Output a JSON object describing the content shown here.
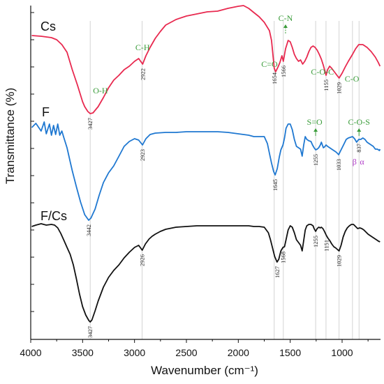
{
  "chart_data": {
    "type": "line",
    "xlabel": "Wavenumber (cm⁻¹)",
    "ylabel": "Transmittance (%)",
    "xlim": [
      4000,
      630
    ],
    "x_reversed": true,
    "x_ticks": [
      4000,
      3500,
      3000,
      2500,
      2000,
      1500,
      1000
    ],
    "grid": false,
    "colors": {
      "Cs": "#e8294f",
      "F": "#1f78d1",
      "F/Cs": "#111111",
      "groups": "#3a9c3a",
      "greek": "#b03cc8",
      "guide": "#c8c8c8"
    },
    "series": [
      {
        "name": "Cs",
        "points": [
          [
            3990,
            51
          ],
          [
            3900,
            52
          ],
          [
            3800,
            54
          ],
          [
            3750,
            57
          ],
          [
            3700,
            64
          ],
          [
            3650,
            75
          ],
          [
            3600,
            100
          ],
          [
            3550,
            122
          ],
          [
            3500,
            146
          ],
          [
            3480,
            153
          ],
          [
            3450,
            160
          ],
          [
            3427,
            163
          ],
          [
            3400,
            162
          ],
          [
            3350,
            153
          ],
          [
            3300,
            140
          ],
          [
            3250,
            126
          ],
          [
            3200,
            115
          ],
          [
            3150,
            108
          ],
          [
            3100,
            100
          ],
          [
            3050,
            95
          ],
          [
            3000,
            88
          ],
          [
            2960,
            84
          ],
          [
            2922,
            92
          ],
          [
            2890,
            80
          ],
          [
            2850,
            68
          ],
          [
            2800,
            55
          ],
          [
            2750,
            45
          ],
          [
            2700,
            36
          ],
          [
            2600,
            28
          ],
          [
            2500,
            23
          ],
          [
            2400,
            20
          ],
          [
            2300,
            17
          ],
          [
            2200,
            16
          ],
          [
            2100,
            12
          ],
          [
            2000,
            9
          ],
          [
            1950,
            8
          ],
          [
            1900,
            12
          ],
          [
            1850,
            18
          ],
          [
            1800,
            24
          ],
          [
            1750,
            32
          ],
          [
            1700,
            44
          ],
          [
            1680,
            58
          ],
          [
            1654,
            98
          ],
          [
            1640,
            103
          ],
          [
            1620,
            97
          ],
          [
            1600,
            90
          ],
          [
            1580,
            80
          ],
          [
            1566,
            88
          ],
          [
            1545,
            70
          ],
          [
            1520,
            58
          ],
          [
            1500,
            60
          ],
          [
            1480,
            68
          ],
          [
            1460,
            78
          ],
          [
            1440,
            84
          ],
          [
            1420,
            88
          ],
          [
            1400,
            86
          ],
          [
            1380,
            92
          ],
          [
            1360,
            88
          ],
          [
            1340,
            82
          ],
          [
            1320,
            74
          ],
          [
            1300,
            68
          ],
          [
            1280,
            66
          ],
          [
            1260,
            68
          ],
          [
            1240,
            72
          ],
          [
            1220,
            78
          ],
          [
            1200,
            85
          ],
          [
            1180,
            94
          ],
          [
            1155,
            108
          ],
          [
            1140,
            100
          ],
          [
            1120,
            95
          ],
          [
            1100,
            98
          ],
          [
            1070,
            104
          ],
          [
            1050,
            108
          ],
          [
            1029,
            112
          ],
          [
            1000,
            105
          ],
          [
            970,
            96
          ],
          [
            940,
            88
          ],
          [
            900,
            78
          ],
          [
            870,
            70
          ],
          [
            840,
            64
          ],
          [
            800,
            64
          ],
          [
            760,
            68
          ],
          [
            720,
            74
          ],
          [
            680,
            82
          ],
          [
            650,
            90
          ],
          [
            635,
            95
          ]
        ]
      },
      {
        "name": "F",
        "points": [
          [
            3990,
            183
          ],
          [
            3950,
            177
          ],
          [
            3900,
            188
          ],
          [
            3870,
            175
          ],
          [
            3850,
            192
          ],
          [
            3820,
            178
          ],
          [
            3800,
            194
          ],
          [
            3780,
            180
          ],
          [
            3760,
            193
          ],
          [
            3740,
            178
          ],
          [
            3720,
            194
          ],
          [
            3700,
            188
          ],
          [
            3680,
            198
          ],
          [
            3650,
            212
          ],
          [
            3620,
            232
          ],
          [
            3600,
            245
          ],
          [
            3560,
            268
          ],
          [
            3520,
            290
          ],
          [
            3480,
            308
          ],
          [
            3442,
            316
          ],
          [
            3420,
            313
          ],
          [
            3380,
            300
          ],
          [
            3340,
            280
          ],
          [
            3300,
            262
          ],
          [
            3250,
            248
          ],
          [
            3200,
            238
          ],
          [
            3150,
            224
          ],
          [
            3100,
            210
          ],
          [
            3050,
            203
          ],
          [
            3000,
            199
          ],
          [
            2960,
            201
          ],
          [
            2923,
            208
          ],
          [
            2890,
            199
          ],
          [
            2850,
            193
          ],
          [
            2800,
            191
          ],
          [
            2700,
            190
          ],
          [
            2600,
            190
          ],
          [
            2500,
            189
          ],
          [
            2400,
            189
          ],
          [
            2300,
            189
          ],
          [
            2200,
            189
          ],
          [
            2100,
            190
          ],
          [
            2000,
            192
          ],
          [
            1900,
            194
          ],
          [
            1850,
            196
          ],
          [
            1800,
            196
          ],
          [
            1750,
            196
          ],
          [
            1720,
            206
          ],
          [
            1700,
            220
          ],
          [
            1680,
            234
          ],
          [
            1660,
            246
          ],
          [
            1645,
            251
          ],
          [
            1625,
            242
          ],
          [
            1605,
            225
          ],
          [
            1590,
            215
          ],
          [
            1570,
            208
          ],
          [
            1555,
            198
          ],
          [
            1540,
            184
          ],
          [
            1520,
            178
          ],
          [
            1500,
            178
          ],
          [
            1480,
            186
          ],
          [
            1460,
            200
          ],
          [
            1440,
            210
          ],
          [
            1420,
            212
          ],
          [
            1400,
            214
          ],
          [
            1385,
            224
          ],
          [
            1370,
            208
          ],
          [
            1355,
            196
          ],
          [
            1340,
            200
          ],
          [
            1320,
            202
          ],
          [
            1300,
            203
          ],
          [
            1285,
            208
          ],
          [
            1270,
            212
          ],
          [
            1255,
            215
          ],
          [
            1240,
            214
          ],
          [
            1225,
            212
          ],
          [
            1210,
            208
          ],
          [
            1200,
            204
          ],
          [
            1190,
            208
          ],
          [
            1180,
            212
          ],
          [
            1170,
            211
          ],
          [
            1155,
            208
          ],
          [
            1140,
            210
          ],
          [
            1120,
            212
          ],
          [
            1100,
            214
          ],
          [
            1080,
            216
          ],
          [
            1060,
            218
          ],
          [
            1045,
            220
          ],
          [
            1033,
            222
          ],
          [
            1020,
            218
          ],
          [
            1000,
            212
          ],
          [
            980,
            206
          ],
          [
            960,
            200
          ],
          [
            940,
            198
          ],
          [
            920,
            197
          ],
          [
            900,
            196
          ],
          [
            880,
            199
          ],
          [
            860,
            204
          ],
          [
            840,
            200
          ],
          [
            820,
            200
          ],
          [
            800,
            198
          ],
          [
            780,
            200
          ],
          [
            760,
            204
          ],
          [
            740,
            206
          ],
          [
            720,
            208
          ],
          [
            700,
            210
          ],
          [
            680,
            214
          ],
          [
            660,
            214
          ],
          [
            640,
            216
          ],
          [
            635,
            214
          ]
        ]
      },
      {
        "name": "F/Cs",
        "points": [
          [
            3990,
            325
          ],
          [
            3950,
            323
          ],
          [
            3900,
            321
          ],
          [
            3850,
            323
          ],
          [
            3800,
            322
          ],
          [
            3770,
            323
          ],
          [
            3740,
            327
          ],
          [
            3710,
            335
          ],
          [
            3680,
            345
          ],
          [
            3650,
            355
          ],
          [
            3620,
            365
          ],
          [
            3590,
            380
          ],
          [
            3560,
            400
          ],
          [
            3530,
            422
          ],
          [
            3500,
            440
          ],
          [
            3470,
            452
          ],
          [
            3440,
            460
          ],
          [
            3427,
            462
          ],
          [
            3410,
            459
          ],
          [
            3380,
            446
          ],
          [
            3350,
            432
          ],
          [
            3300,
            412
          ],
          [
            3250,
            398
          ],
          [
            3200,
            388
          ],
          [
            3150,
            380
          ],
          [
            3100,
            370
          ],
          [
            3050,
            362
          ],
          [
            3000,
            355
          ],
          [
            2960,
            352
          ],
          [
            2926,
            359
          ],
          [
            2895,
            350
          ],
          [
            2860,
            343
          ],
          [
            2830,
            339
          ],
          [
            2800,
            336
          ],
          [
            2750,
            332
          ],
          [
            2700,
            329
          ],
          [
            2600,
            326
          ],
          [
            2500,
            325
          ],
          [
            2400,
            324
          ],
          [
            2300,
            324
          ],
          [
            2200,
            324
          ],
          [
            2100,
            324
          ],
          [
            2000,
            324
          ],
          [
            1900,
            324
          ],
          [
            1850,
            325
          ],
          [
            1800,
            325
          ],
          [
            1750,
            326
          ],
          [
            1710,
            334
          ],
          [
            1690,
            344
          ],
          [
            1670,
            356
          ],
          [
            1650,
            368
          ],
          [
            1627,
            376
          ],
          [
            1610,
            372
          ],
          [
            1590,
            360
          ],
          [
            1570,
            355
          ],
          [
            1555,
            354
          ],
          [
            1540,
            344
          ],
          [
            1520,
            330
          ],
          [
            1500,
            324
          ],
          [
            1480,
            326
          ],
          [
            1460,
            334
          ],
          [
            1440,
            344
          ],
          [
            1420,
            348
          ],
          [
            1400,
            352
          ],
          [
            1385,
            360
          ],
          [
            1370,
            345
          ],
          [
            1355,
            330
          ],
          [
            1340,
            324
          ],
          [
            1320,
            322
          ],
          [
            1300,
            322
          ],
          [
            1280,
            324
          ],
          [
            1270,
            328
          ],
          [
            1255,
            332
          ],
          [
            1240,
            328
          ],
          [
            1225,
            326
          ],
          [
            1210,
            327
          ],
          [
            1200,
            326
          ],
          [
            1185,
            328
          ],
          [
            1170,
            332
          ],
          [
            1151,
            338
          ],
          [
            1135,
            342
          ],
          [
            1120,
            345
          ],
          [
            1100,
            350
          ],
          [
            1080,
            354
          ],
          [
            1060,
            356
          ],
          [
            1045,
            358
          ],
          [
            1029,
            360
          ],
          [
            1010,
            352
          ],
          [
            990,
            340
          ],
          [
            970,
            332
          ],
          [
            950,
            327
          ],
          [
            930,
            324
          ],
          [
            910,
            322
          ],
          [
            890,
            322
          ],
          [
            870,
            325
          ],
          [
            850,
            328
          ],
          [
            830,
            327
          ],
          [
            810,
            328
          ],
          [
            790,
            330
          ],
          [
            770,
            333
          ],
          [
            750,
            336
          ],
          [
            730,
            338
          ],
          [
            710,
            340
          ],
          [
            690,
            342
          ],
          [
            670,
            344
          ],
          [
            650,
            346
          ],
          [
            635,
            347
          ]
        ]
      }
    ],
    "peaks": {
      "Cs": [
        3427,
        2922,
        1654,
        1566,
        1155,
        1029
      ],
      "F": [
        3442,
        2923,
        1645,
        1255,
        1033,
        837
      ],
      "F/Cs": [
        3427,
        2926,
        1627,
        1568,
        1255,
        1151,
        1029
      ]
    },
    "peak_labels": {
      "Cs": [
        "3427",
        "2922",
        "1654",
        "1566",
        "1155",
        "1029"
      ],
      "F": [
        "3442",
        "2923",
        "1645",
        "1255",
        "1033",
        "837"
      ],
      "F/Cs": [
        "3427",
        "2926",
        "1627",
        "1568",
        "1255",
        "1151",
        "1029"
      ]
    },
    "functional_groups": [
      {
        "label": "O-H",
        "x": 3400
      },
      {
        "label": "C-H",
        "x": 2922
      },
      {
        "label": "C=O",
        "x": 1700
      },
      {
        "label": "C-N",
        "x": 1545
      },
      {
        "label": "C-O-C",
        "x": 1190
      },
      {
        "label": "C-O",
        "x": 975
      },
      {
        "label": "S=O",
        "x": 1265
      },
      {
        "label": "C-O-S",
        "x": 837
      }
    ],
    "greek_labels": [
      "β",
      "α"
    ]
  }
}
